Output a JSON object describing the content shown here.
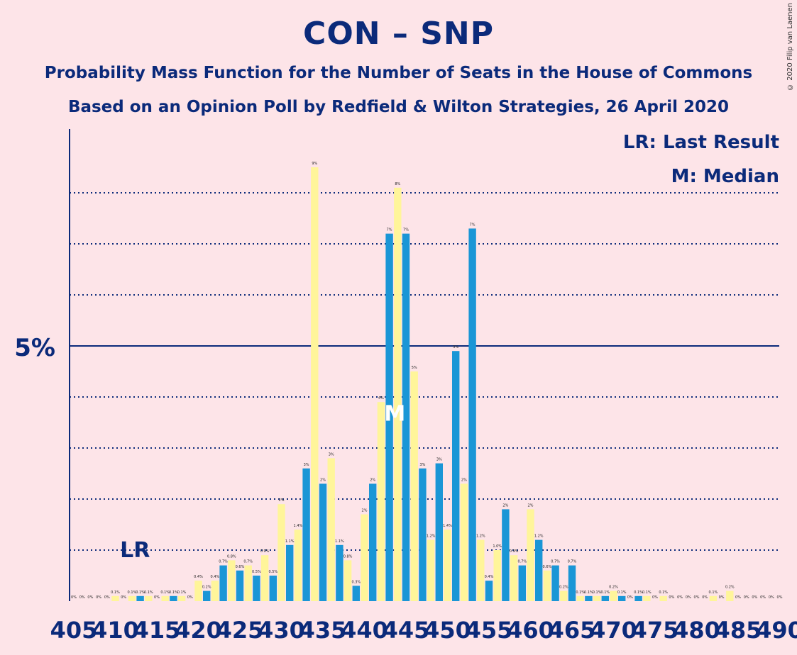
{
  "title": "CON – SNP",
  "subtitle": "Probability Mass Function for the Number of Seats in the House of Commons",
  "subtitle2": "Based on an Opinion Poll by Redfield & Wilton Strategies, 26 April 2020",
  "copyright": "© 2020 Filip van Laenen",
  "legend": {
    "lr": "LR: Last Result",
    "m": "M: Median"
  },
  "markers": {
    "lr_label": "LR",
    "median_label": "M"
  },
  "colors": {
    "background": "#fde4e8",
    "text": "#0b2a7a",
    "blue_bar": "#1a96d6",
    "yellow_bar": "#fff59a"
  },
  "chart_data": {
    "type": "bar",
    "x": [
      405,
      406,
      407,
      408,
      409,
      410,
      411,
      412,
      413,
      414,
      415,
      416,
      417,
      418,
      419,
      420,
      421,
      422,
      423,
      424,
      425,
      426,
      427,
      428,
      429,
      430,
      431,
      432,
      433,
      434,
      435,
      436,
      437,
      438,
      439,
      440,
      441,
      442,
      443,
      444,
      445,
      446,
      447,
      448,
      449,
      450,
      451,
      452,
      453,
      454,
      455,
      456,
      457,
      458,
      459,
      460,
      461,
      462,
      463,
      464,
      465,
      466,
      467,
      468,
      469,
      470,
      471,
      472,
      473,
      474,
      475,
      476,
      477,
      478,
      479,
      480,
      481,
      482,
      483,
      484,
      485,
      486,
      487,
      488,
      489,
      490
    ],
    "values": [
      0,
      0,
      0,
      0,
      0,
      0.1,
      0,
      0.1,
      0.1,
      0.1,
      0,
      0.1,
      0.1,
      0.1,
      0,
      0.4,
      0.2,
      0.4,
      0.7,
      0.8,
      0.6,
      0.7,
      0.5,
      0.9,
      0.5,
      1.9,
      1.1,
      1.4,
      2.6,
      8.5,
      2.3,
      2.8,
      1.1,
      0.8,
      0.3,
      1.7,
      2.3,
      3.9,
      7.2,
      8.1,
      7.2,
      4.5,
      2.6,
      1.2,
      2.7,
      1.4,
      4.9,
      2.3,
      7.3,
      1.2,
      0.4,
      1.0,
      1.8,
      0.9,
      0.7,
      1.8,
      1.2,
      0.6,
      0.7,
      0.2,
      0.7,
      0.1,
      0.1,
      0.1,
      0.1,
      0.2,
      0.1,
      0,
      0.1,
      0.1,
      0,
      0.1,
      0,
      0,
      0,
      0,
      0,
      0.1,
      0,
      0.2,
      0,
      0,
      0,
      0,
      0,
      0
    ],
    "labels": [
      "0%",
      "0%",
      "0%",
      "0%",
      "0%",
      "0.1%",
      "0%",
      "0.1%",
      "0.1%",
      "0.1%",
      "0%",
      "0.1%",
      "0.1%",
      "0.1%",
      "0%",
      "0.4%",
      "0.2%",
      "0.4%",
      "0.7%",
      "0.8%",
      "0.6%",
      "0.7%",
      "0.5%",
      "0.9%",
      "0.5%",
      "2%",
      "1.1%",
      "1.4%",
      "3%",
      "9%",
      "2%",
      "3%",
      "1.1%",
      "0.8%",
      "0.3%",
      "2%",
      "2%",
      "4%",
      "7%",
      "8%",
      "7%",
      "5%",
      "3%",
      "1.2%",
      "3%",
      "1.4%",
      "5%",
      "2%",
      "7%",
      "1.2%",
      "0.4%",
      "1.0%",
      "2%",
      "0.9%",
      "0.7%",
      "2%",
      "1.2%",
      "0.6%",
      "0.7%",
      "0.2%",
      "0.7%",
      "0.1%",
      "0.1%",
      "0.1%",
      "0.1%",
      "0.2%",
      "0.1%",
      "0%",
      "0.1%",
      "0.1%",
      "0%",
      "0.1%",
      "0%",
      "0%",
      "0%",
      "0%",
      "0%",
      "0.1%",
      "0%",
      "0.2%",
      "0%",
      "0%",
      "0%",
      "0%",
      "0%",
      "0%"
    ],
    "x_ticks": [
      405,
      410,
      415,
      420,
      425,
      430,
      435,
      440,
      445,
      450,
      455,
      460,
      465,
      470,
      475,
      480,
      485,
      490
    ],
    "y_tick_label": "5%",
    "y_tick_value": 5,
    "gridlines": [
      1,
      2,
      3,
      4,
      6,
      7,
      8
    ],
    "last_result": 411,
    "median": 444,
    "ylim": [
      0,
      9.25
    ]
  }
}
